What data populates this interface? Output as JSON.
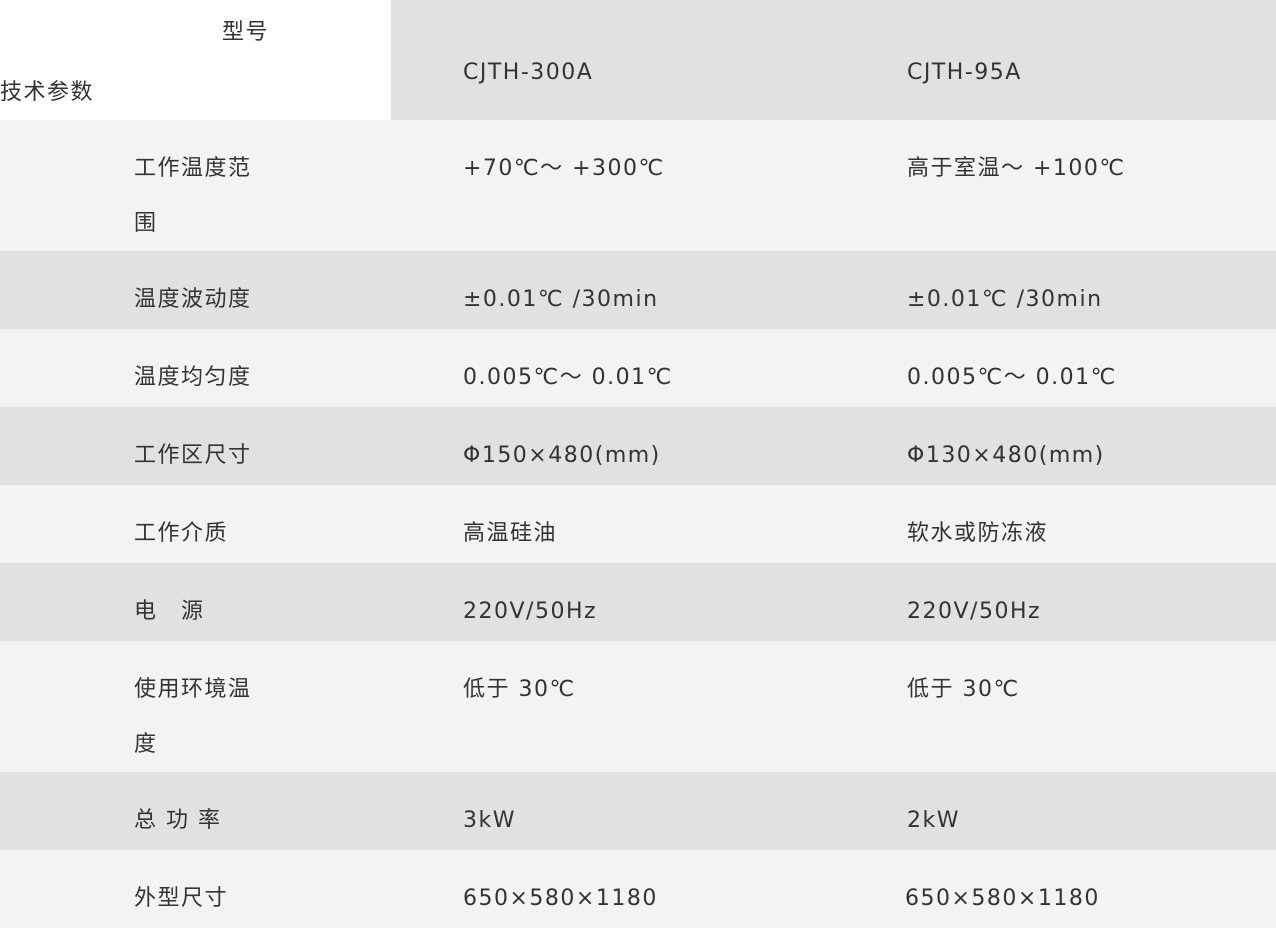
{
  "header": {
    "model_label": "型号",
    "param_label": "技术参数",
    "models": [
      "CJTH-300A",
      "CJTH-95A"
    ]
  },
  "rows": [
    {
      "label": "工作温度范围",
      "values": [
        "+70℃～ +300℃",
        "高于室温～ +100℃"
      ]
    },
    {
      "label": "温度波动度",
      "values": [
        "±0.01℃ /30min",
        "±0.01℃ /30min"
      ]
    },
    {
      "label": "温度均匀度",
      "values": [
        "0.005℃～ 0.01℃",
        "0.005℃～ 0.01℃"
      ]
    },
    {
      "label": "工作区尺寸",
      "values": [
        "Φ150×480(mm)",
        "Φ130×480(mm)"
      ]
    },
    {
      "label": "工作介质",
      "values": [
        "高温硅油",
        "软水或防冻液"
      ]
    },
    {
      "label": "电　源",
      "values": [
        "220V/50Hz",
        "220V/50Hz"
      ]
    },
    {
      "label": "使用环境温度",
      "values": [
        "低于 30℃",
        "低于 30℃"
      ]
    },
    {
      "label": "总 功 率",
      "values": [
        "3kW",
        "2kW"
      ]
    },
    {
      "label": "外型尺寸",
      "values": [
        "650×580×1180",
        "650×580×1180"
      ]
    }
  ]
}
